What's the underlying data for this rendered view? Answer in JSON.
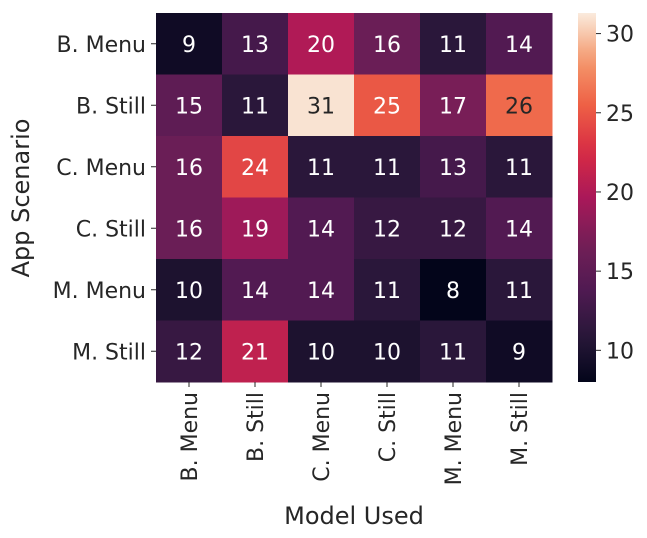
{
  "chart_data": {
    "type": "heatmap",
    "title": "",
    "xlabel": "Model Used",
    "ylabel": "App Scenario",
    "x_categories": [
      "B. Menu",
      "B. Still",
      "C. Menu",
      "C. Still",
      "M. Menu",
      "M. Still"
    ],
    "y_categories": [
      "B. Menu",
      "B. Still",
      "C. Menu",
      "C. Still",
      "M. Menu",
      "M. Still"
    ],
    "values": [
      [
        9,
        13,
        20,
        16,
        11,
        14
      ],
      [
        15,
        11,
        31,
        25,
        17,
        26
      ],
      [
        16,
        24,
        11,
        11,
        13,
        11
      ],
      [
        16,
        19,
        14,
        12,
        12,
        14
      ],
      [
        10,
        14,
        14,
        11,
        8,
        11
      ],
      [
        12,
        21,
        10,
        10,
        11,
        9
      ]
    ],
    "annotations": true,
    "colormap": "rocket",
    "colorbar": {
      "range": [
        8,
        31.3
      ],
      "ticks": [
        10,
        15,
        20,
        25,
        30
      ],
      "tick_labels": [
        "10",
        "15",
        "20",
        "25",
        "30"
      ]
    },
    "grid": false,
    "legend": "colorbar-right"
  }
}
